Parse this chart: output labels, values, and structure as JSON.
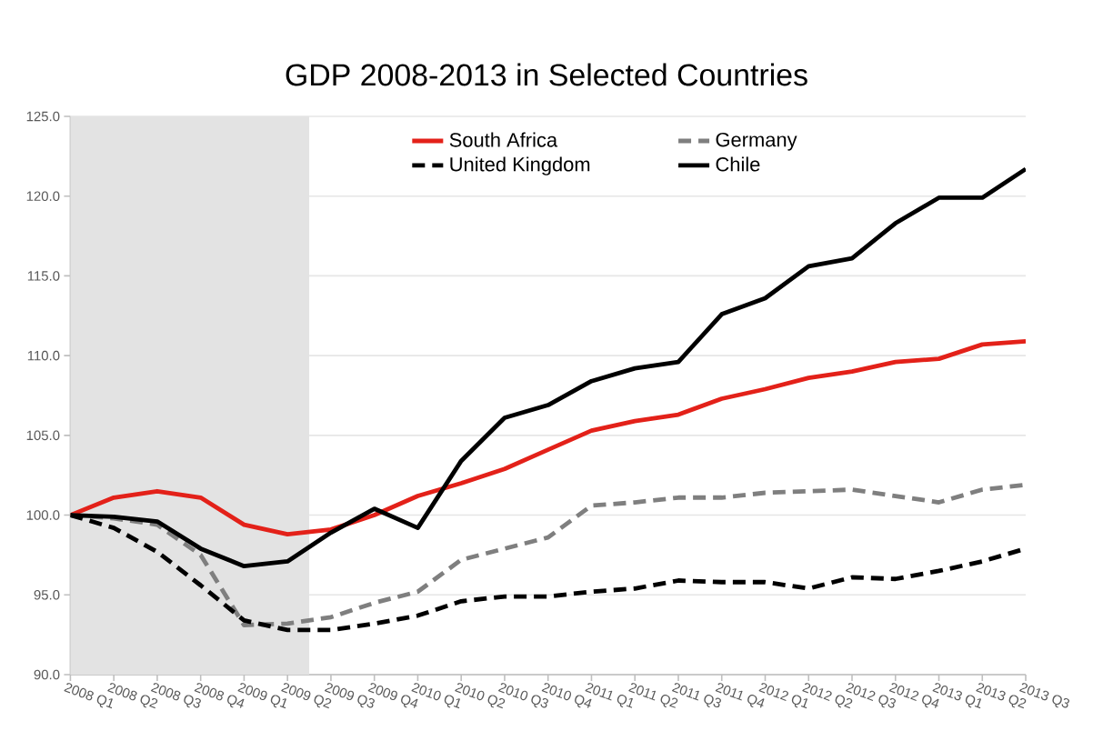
{
  "chart_data": {
    "type": "line",
    "title": "GDP 2008-2013 in Selected Countries",
    "categories": [
      "2008 Q1",
      "2008 Q2",
      "2008 Q3",
      "2008 Q4",
      "2009 Q1",
      "2009 Q2",
      "2009 Q3",
      "2009 Q4",
      "2010 Q1",
      "2010 Q2",
      "2010 Q3",
      "2010 Q4",
      "2011 Q1",
      "2011 Q2",
      "2011 Q3",
      "2011 Q4",
      "2012 Q1",
      "2012 Q2",
      "2012 Q3",
      "2012 Q4",
      "2013 Q1",
      "2013 Q2",
      "2013 Q3"
    ],
    "series": [
      {
        "name": "South Africa",
        "color": "#e32119",
        "line_style": "solid",
        "values": [
          100.0,
          101.1,
          101.5,
          101.1,
          99.4,
          98.8,
          99.1,
          100.0,
          101.2,
          102.0,
          102.9,
          104.1,
          105.3,
          105.9,
          106.3,
          107.3,
          107.9,
          108.6,
          109.0,
          109.6,
          109.8,
          110.7,
          110.9
        ]
      },
      {
        "name": "Germany",
        "color": "#7f7f7f",
        "line_style": "dashed",
        "values": [
          100.0,
          99.8,
          99.4,
          97.5,
          93.1,
          93.2,
          93.6,
          94.5,
          95.2,
          97.2,
          97.9,
          98.6,
          100.6,
          100.8,
          101.1,
          101.1,
          101.4,
          101.5,
          101.6,
          101.2,
          100.8,
          101.6,
          101.9
        ]
      },
      {
        "name": "United Kingdom",
        "color": "#000000",
        "line_style": "dashed",
        "values": [
          100.0,
          99.2,
          97.7,
          95.6,
          93.4,
          92.8,
          92.8,
          93.2,
          93.7,
          94.6,
          94.9,
          94.9,
          95.2,
          95.4,
          95.9,
          95.8,
          95.8,
          95.4,
          96.1,
          96.0,
          96.5,
          97.1,
          97.9
        ]
      },
      {
        "name": "Chile",
        "color": "#000000",
        "line_style": "solid",
        "values": [
          100.0,
          99.9,
          99.6,
          97.9,
          96.8,
          97.1,
          98.9,
          100.4,
          99.2,
          103.4,
          106.1,
          106.9,
          108.4,
          109.2,
          109.6,
          112.6,
          113.6,
          115.6,
          116.1,
          118.3,
          119.9,
          119.9,
          121.7
        ]
      }
    ],
    "ylim": [
      90,
      125
    ],
    "yticks": [
      {
        "value": 90,
        "label": "90.0"
      },
      {
        "value": 95,
        "label": "95.0"
      },
      {
        "value": 100,
        "label": "100.0"
      },
      {
        "value": 105,
        "label": "105.0"
      },
      {
        "value": 110,
        "label": "110.0"
      },
      {
        "value": 115,
        "label": "115.0"
      },
      {
        "value": 120,
        "label": "120.0"
      },
      {
        "value": 125,
        "label": "125.0"
      }
    ],
    "bands": [
      {
        "axis": "x",
        "from": "2008 Q1",
        "to": "2009 Q2",
        "color": "#e3e3e3"
      }
    ],
    "grid": "y",
    "legend": "top"
  }
}
